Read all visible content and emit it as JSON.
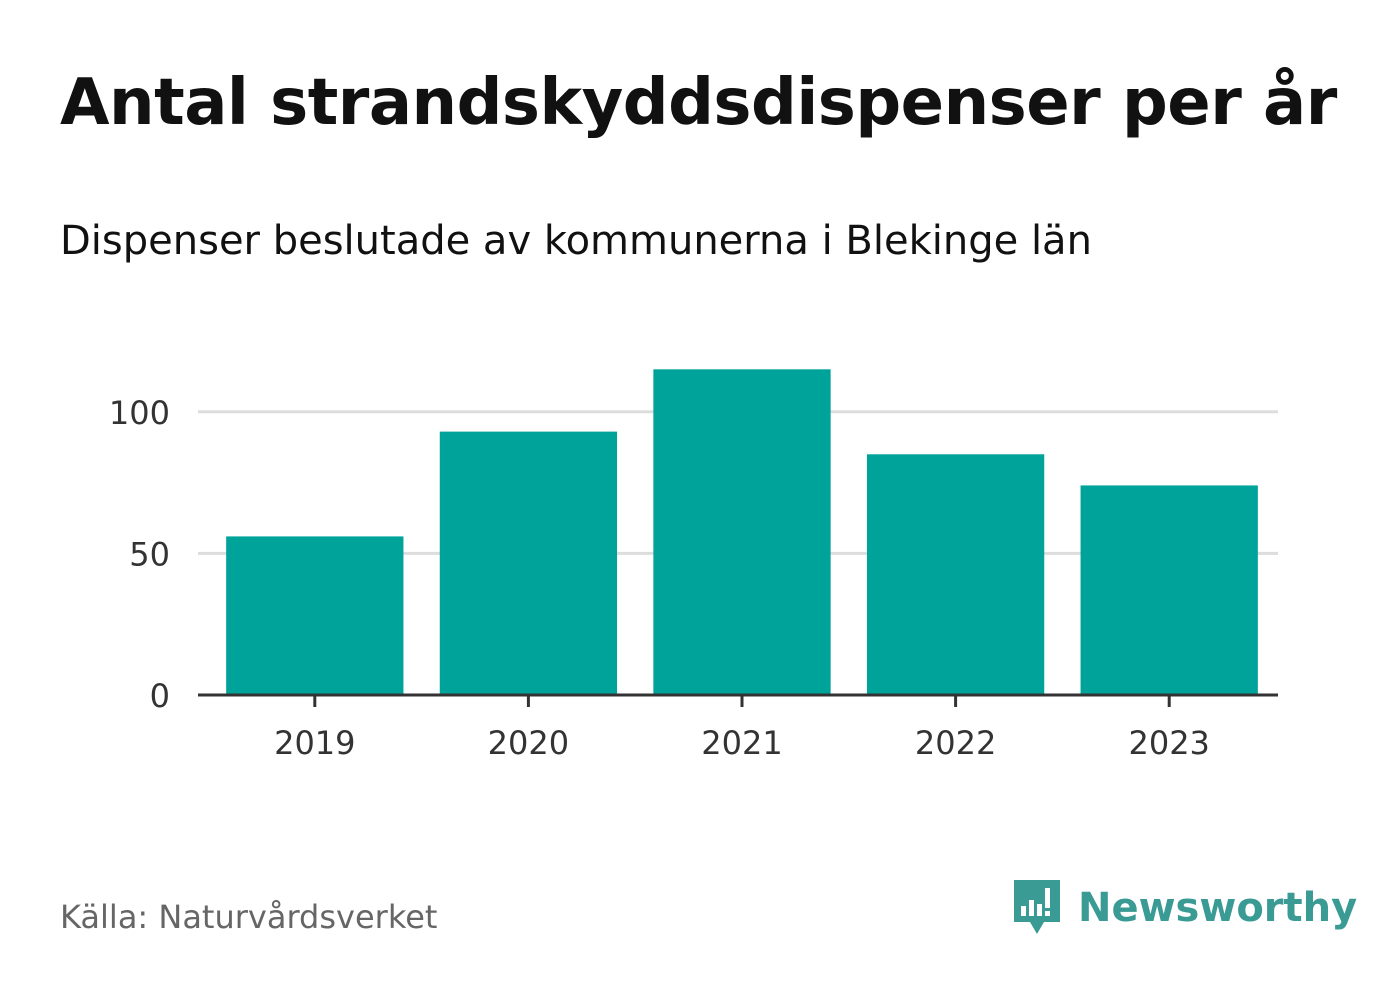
{
  "title": "Antal strandskyddsdispenser per år",
  "subtitle": "Dispenser beslutade av kommunerna i Blekinge län",
  "source": "Källa: Naturvårdsverket",
  "brand": {
    "name": "Newsworthy",
    "icon": "newsworthy-logo-icon",
    "color": "#3a9a94"
  },
  "colors": {
    "bar": "#00a39a",
    "grid": "#dddddd",
    "axis": "#333333"
  },
  "chart_data": {
    "type": "bar",
    "title": "Antal strandskyddsdispenser per år",
    "subtitle": "Dispenser beslutade av kommunerna i Blekinge län",
    "categories": [
      "2019",
      "2020",
      "2021",
      "2022",
      "2023"
    ],
    "values": [
      56,
      93,
      115,
      85,
      74
    ],
    "xlabel": "",
    "ylabel": "",
    "ylim": [
      0,
      125
    ],
    "yticks": [
      0,
      50,
      100
    ],
    "grid": true,
    "legend": "none"
  }
}
